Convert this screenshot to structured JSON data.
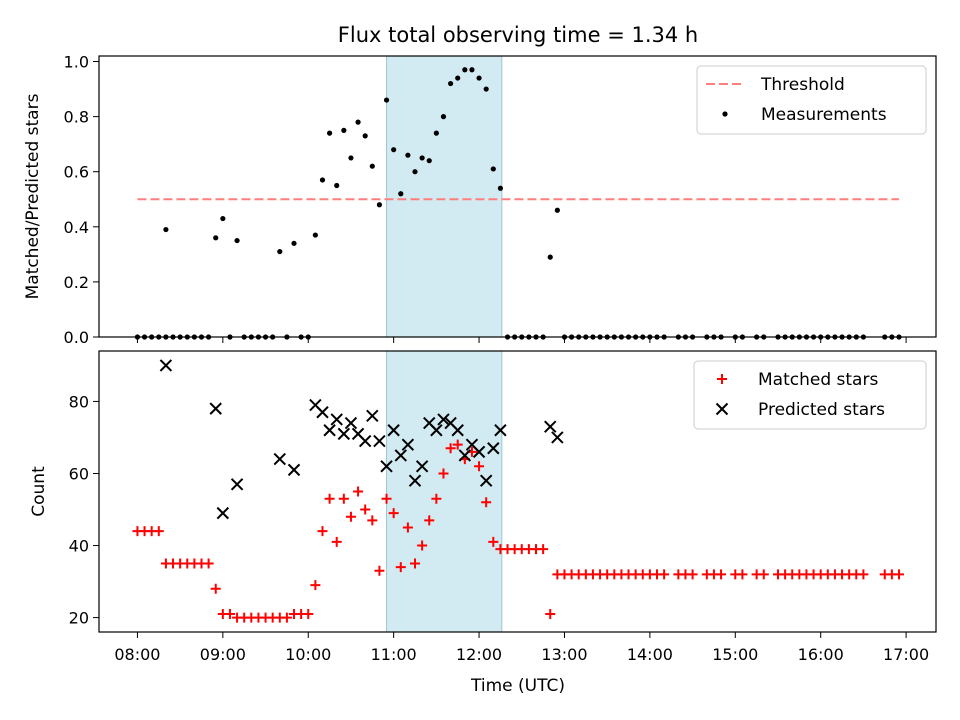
{
  "colors": {
    "threshold": "#ff7f7f",
    "measurement": "#000000",
    "matched": "#ff0000",
    "predicted": "#000000",
    "shade": "#add8e6"
  },
  "chart_data": [
    {
      "type": "scatter",
      "title": "Flux total observing time = 1.34 h",
      "xlabel": "",
      "ylabel": "Matched/Predicted stars",
      "xlim": [
        "07:33",
        "17:21"
      ],
      "ylim": [
        0,
        1.02
      ],
      "yticks": [
        "0.0",
        "0.2",
        "0.4",
        "0.6",
        "0.8",
        "1.0"
      ],
      "shaded_region": [
        "10:55",
        "12:16"
      ],
      "threshold": {
        "name": "Threshold",
        "value": 0.5,
        "x": [
          "08:00",
          "16:55"
        ]
      },
      "legend": {
        "placement": "top-right",
        "entries": [
          "Threshold",
          "Measurements"
        ]
      },
      "series": [
        {
          "name": "Measurements",
          "points": [
            [
              "08:00",
              0
            ],
            [
              "08:05",
              0
            ],
            [
              "08:10",
              0
            ],
            [
              "08:15",
              0
            ],
            [
              "08:20",
              0
            ],
            [
              "08:20",
              0.39
            ],
            [
              "08:25",
              0
            ],
            [
              "08:30",
              0
            ],
            [
              "08:35",
              0
            ],
            [
              "08:40",
              0
            ],
            [
              "08:45",
              0
            ],
            [
              "08:50",
              0
            ],
            [
              "08:55",
              0.36
            ],
            [
              "09:00",
              0.43
            ],
            [
              "09:05",
              0
            ],
            [
              "09:10",
              0.35
            ],
            [
              "09:15",
              0
            ],
            [
              "09:20",
              0
            ],
            [
              "09:25",
              0
            ],
            [
              "09:30",
              0
            ],
            [
              "09:35",
              0
            ],
            [
              "09:40",
              0.31
            ],
            [
              "09:45",
              0
            ],
            [
              "09:50",
              0.34
            ],
            [
              "09:55",
              0
            ],
            [
              "10:00",
              0
            ],
            [
              "10:05",
              0.37
            ],
            [
              "10:10",
              0.57
            ],
            [
              "10:15",
              0.74
            ],
            [
              "10:20",
              0.55
            ],
            [
              "10:25",
              0.75
            ],
            [
              "10:30",
              0.65
            ],
            [
              "10:35",
              0.78
            ],
            [
              "10:40",
              0.73
            ],
            [
              "10:45",
              0.62
            ],
            [
              "10:50",
              0.48
            ],
            [
              "10:55",
              0.86
            ],
            [
              "11:00",
              0.68
            ],
            [
              "11:05",
              0.52
            ],
            [
              "11:10",
              0.66
            ],
            [
              "11:15",
              0.6
            ],
            [
              "11:20",
              0.65
            ],
            [
              "11:25",
              0.64
            ],
            [
              "11:30",
              0.74
            ],
            [
              "11:35",
              0.8
            ],
            [
              "11:40",
              0.92
            ],
            [
              "11:45",
              0.94
            ],
            [
              "11:50",
              0.97
            ],
            [
              "11:55",
              0.97
            ],
            [
              "12:00",
              0.94
            ],
            [
              "12:05",
              0.9
            ],
            [
              "12:10",
              0.61
            ],
            [
              "12:15",
              0.54
            ],
            [
              "12:20",
              0
            ],
            [
              "12:25",
              0
            ],
            [
              "12:30",
              0
            ],
            [
              "12:35",
              0
            ],
            [
              "12:40",
              0
            ],
            [
              "12:45",
              0
            ],
            [
              "12:50",
              0.29
            ],
            [
              "12:55",
              0.46
            ],
            [
              "13:00",
              0
            ],
            [
              "13:05",
              0
            ],
            [
              "13:10",
              0
            ],
            [
              "13:15",
              0
            ],
            [
              "13:20",
              0
            ],
            [
              "13:25",
              0
            ],
            [
              "13:30",
              0
            ],
            [
              "13:35",
              0
            ],
            [
              "13:40",
              0
            ],
            [
              "13:45",
              0
            ],
            [
              "13:50",
              0
            ],
            [
              "13:55",
              0
            ],
            [
              "14:00",
              0
            ],
            [
              "14:05",
              0
            ],
            [
              "14:10",
              0
            ],
            [
              "14:20",
              0
            ],
            [
              "14:25",
              0
            ],
            [
              "14:30",
              0
            ],
            [
              "14:40",
              0
            ],
            [
              "14:45",
              0
            ],
            [
              "14:50",
              0
            ],
            [
              "15:00",
              0
            ],
            [
              "15:05",
              0
            ],
            [
              "15:15",
              0
            ],
            [
              "15:20",
              0
            ],
            [
              "15:30",
              0
            ],
            [
              "15:35",
              0
            ],
            [
              "15:40",
              0
            ],
            [
              "15:45",
              0
            ],
            [
              "15:50",
              0
            ],
            [
              "15:55",
              0
            ],
            [
              "16:00",
              0
            ],
            [
              "16:05",
              0
            ],
            [
              "16:10",
              0
            ],
            [
              "16:15",
              0
            ],
            [
              "16:20",
              0
            ],
            [
              "16:25",
              0
            ],
            [
              "16:30",
              0
            ],
            [
              "16:45",
              0
            ],
            [
              "16:50",
              0
            ],
            [
              "16:55",
              0
            ]
          ]
        }
      ]
    },
    {
      "type": "scatter",
      "title": "",
      "xlabel": "Time (UTC)",
      "ylabel": "Count",
      "xlim": [
        "07:33",
        "17:21"
      ],
      "ylim": [
        16,
        94
      ],
      "yticks": [
        "20",
        "40",
        "60",
        "80"
      ],
      "xticks": [
        "08:00",
        "09:00",
        "10:00",
        "11:00",
        "12:00",
        "13:00",
        "14:00",
        "15:00",
        "16:00",
        "17:00"
      ],
      "shaded_region": [
        "10:55",
        "12:16"
      ],
      "legend": {
        "placement": "top-right",
        "entries": [
          "Matched stars",
          "Predicted stars"
        ]
      },
      "series": [
        {
          "name": "Matched stars",
          "marker": "plus",
          "points": [
            [
              "08:00",
              44
            ],
            [
              "08:05",
              44
            ],
            [
              "08:10",
              44
            ],
            [
              "08:15",
              44
            ],
            [
              "08:20",
              35
            ],
            [
              "08:25",
              35
            ],
            [
              "08:30",
              35
            ],
            [
              "08:35",
              35
            ],
            [
              "08:40",
              35
            ],
            [
              "08:45",
              35
            ],
            [
              "08:50",
              35
            ],
            [
              "08:55",
              28
            ],
            [
              "09:00",
              21
            ],
            [
              "09:05",
              21
            ],
            [
              "09:10",
              20
            ],
            [
              "09:15",
              20
            ],
            [
              "09:20",
              20
            ],
            [
              "09:25",
              20
            ],
            [
              "09:30",
              20
            ],
            [
              "09:35",
              20
            ],
            [
              "09:40",
              20
            ],
            [
              "09:45",
              20
            ],
            [
              "09:50",
              21
            ],
            [
              "09:55",
              21
            ],
            [
              "10:00",
              21
            ],
            [
              "10:05",
              29
            ],
            [
              "10:10",
              44
            ],
            [
              "10:15",
              53
            ],
            [
              "10:20",
              41
            ],
            [
              "10:25",
              53
            ],
            [
              "10:30",
              48
            ],
            [
              "10:35",
              55
            ],
            [
              "10:40",
              50
            ],
            [
              "10:45",
              47
            ],
            [
              "10:50",
              33
            ],
            [
              "10:55",
              53
            ],
            [
              "11:00",
              49
            ],
            [
              "11:05",
              34
            ],
            [
              "11:10",
              45
            ],
            [
              "11:15",
              35
            ],
            [
              "11:20",
              40
            ],
            [
              "11:25",
              47
            ],
            [
              "11:30",
              53
            ],
            [
              "11:35",
              60
            ],
            [
              "11:40",
              67
            ],
            [
              "11:45",
              68
            ],
            [
              "11:50",
              64
            ],
            [
              "11:55",
              66
            ],
            [
              "12:00",
              62
            ],
            [
              "12:05",
              52
            ],
            [
              "12:10",
              41
            ],
            [
              "12:15",
              39
            ],
            [
              "12:20",
              39
            ],
            [
              "12:25",
              39
            ],
            [
              "12:30",
              39
            ],
            [
              "12:35",
              39
            ],
            [
              "12:40",
              39
            ],
            [
              "12:45",
              39
            ],
            [
              "12:50",
              21
            ],
            [
              "12:55",
              32
            ],
            [
              "13:00",
              32
            ],
            [
              "13:05",
              32
            ],
            [
              "13:10",
              32
            ],
            [
              "13:15",
              32
            ],
            [
              "13:20",
              32
            ],
            [
              "13:25",
              32
            ],
            [
              "13:30",
              32
            ],
            [
              "13:35",
              32
            ],
            [
              "13:40",
              32
            ],
            [
              "13:45",
              32
            ],
            [
              "13:50",
              32
            ],
            [
              "13:55",
              32
            ],
            [
              "14:00",
              32
            ],
            [
              "14:05",
              32
            ],
            [
              "14:10",
              32
            ],
            [
              "14:20",
              32
            ],
            [
              "14:25",
              32
            ],
            [
              "14:30",
              32
            ],
            [
              "14:40",
              32
            ],
            [
              "14:45",
              32
            ],
            [
              "14:50",
              32
            ],
            [
              "15:00",
              32
            ],
            [
              "15:05",
              32
            ],
            [
              "15:15",
              32
            ],
            [
              "15:20",
              32
            ],
            [
              "15:30",
              32
            ],
            [
              "15:35",
              32
            ],
            [
              "15:40",
              32
            ],
            [
              "15:45",
              32
            ],
            [
              "15:50",
              32
            ],
            [
              "15:55",
              32
            ],
            [
              "16:00",
              32
            ],
            [
              "16:05",
              32
            ],
            [
              "16:10",
              32
            ],
            [
              "16:15",
              32
            ],
            [
              "16:20",
              32
            ],
            [
              "16:25",
              32
            ],
            [
              "16:30",
              32
            ],
            [
              "16:45",
              32
            ],
            [
              "16:50",
              32
            ],
            [
              "16:55",
              32
            ]
          ]
        },
        {
          "name": "Predicted stars",
          "marker": "x",
          "points": [
            [
              "08:20",
              90
            ],
            [
              "08:55",
              78
            ],
            [
              "09:00",
              49
            ],
            [
              "09:10",
              57
            ],
            [
              "09:40",
              64
            ],
            [
              "09:50",
              61
            ],
            [
              "10:05",
              79
            ],
            [
              "10:10",
              77
            ],
            [
              "10:15",
              72
            ],
            [
              "10:20",
              75
            ],
            [
              "10:25",
              71
            ],
            [
              "10:30",
              74
            ],
            [
              "10:35",
              71
            ],
            [
              "10:40",
              69
            ],
            [
              "10:45",
              76
            ],
            [
              "10:50",
              69
            ],
            [
              "10:55",
              62
            ],
            [
              "11:00",
              72
            ],
            [
              "11:05",
              65
            ],
            [
              "11:10",
              68
            ],
            [
              "11:15",
              58
            ],
            [
              "11:20",
              62
            ],
            [
              "11:25",
              74
            ],
            [
              "11:30",
              72
            ],
            [
              "11:35",
              75
            ],
            [
              "11:40",
              74
            ],
            [
              "11:45",
              72
            ],
            [
              "11:50",
              65
            ],
            [
              "11:55",
              68
            ],
            [
              "12:00",
              66
            ],
            [
              "12:05",
              58
            ],
            [
              "12:10",
              67
            ],
            [
              "12:15",
              72
            ],
            [
              "12:50",
              73
            ],
            [
              "12:55",
              70
            ]
          ]
        }
      ]
    }
  ]
}
